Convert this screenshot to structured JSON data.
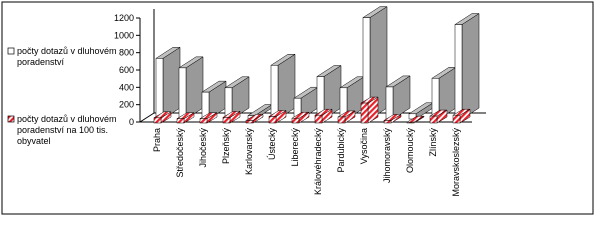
{
  "chart_data": {
    "type": "bar3d",
    "categories": [
      "Praha",
      "Středočeský",
      "Jihočeský",
      "Plzeňský",
      "Karlovarský",
      "Ústecký",
      "Liberecký",
      "Královéhradecký",
      "Pardubický",
      "Vysočina",
      "Jihomoravský",
      "Olomoucký",
      "Zlínský",
      "Moravskoslezský"
    ],
    "series": [
      {
        "name": "počty dotazů v dluhovém poradenství",
        "color": "#ffffff",
        "values": [
          700,
          590,
          310,
          360,
          40,
          620,
          240,
          490,
          360,
          1170,
          370,
          60,
          470,
          1090
        ]
      },
      {
        "name": "počty dotazů v dluhovém poradenství na 100 tis. obyvatel",
        "color": "#e8212a",
        "values": [
          60,
          50,
          50,
          65,
          30,
          75,
          55,
          90,
          70,
          230,
          30,
          10,
          80,
          90
        ]
      }
    ],
    "ylim": [
      0,
      1200
    ],
    "yticks": [
      0,
      200,
      400,
      600,
      800,
      1000,
      1200
    ]
  }
}
